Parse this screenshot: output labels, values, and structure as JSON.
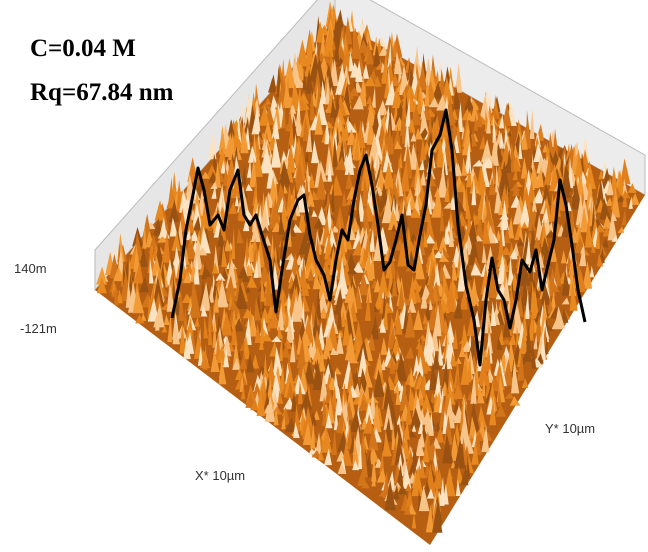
{
  "annotations": {
    "concentration": "C=0.04 M",
    "roughness": "Rq=67.84 nm"
  },
  "axes": {
    "z_max": "140m",
    "z_min": "-121m",
    "y_label": "Y* 10µm",
    "x_label": "X* 10µm"
  }
}
